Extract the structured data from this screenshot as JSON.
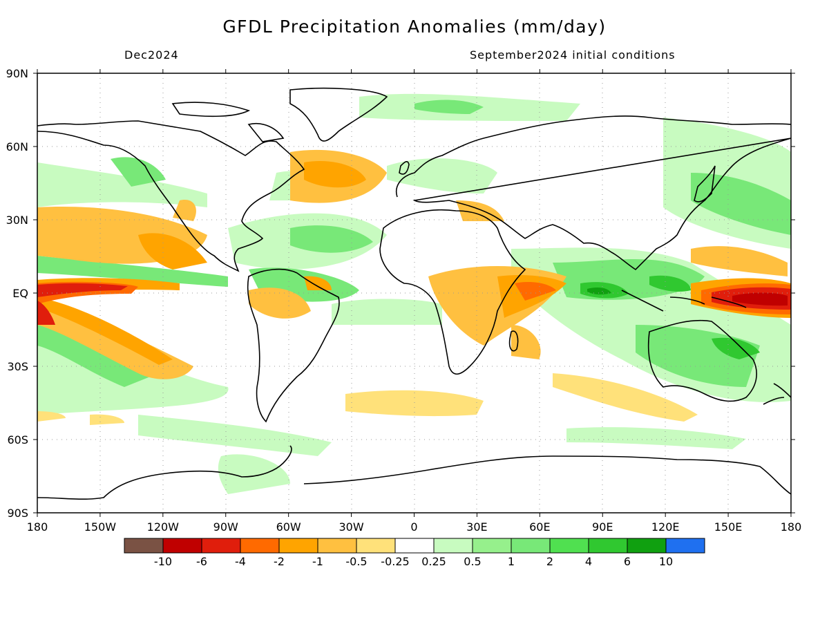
{
  "title": "GFDL Precipitation Anomalies (mm/day)",
  "subtitle_left": "Dec2024",
  "subtitle_right": "September2024 initial conditions",
  "lat_labels": [
    "90N",
    "60N",
    "30N",
    "EQ",
    "30S",
    "60S",
    "90S"
  ],
  "lon_labels": [
    "180",
    "150W",
    "120W",
    "90W",
    "60W",
    "30W",
    "0",
    "30E",
    "60E",
    "90E",
    "120E",
    "150E",
    "180"
  ],
  "colorbar": {
    "colors": [
      "#7a5244",
      "#c00000",
      "#e01e0c",
      "#ff6a00",
      "#ffa400",
      "#ffc040",
      "#ffe17a",
      "#ffffff",
      "#c8fbc0",
      "#96f08c",
      "#78e878",
      "#50e050",
      "#30c830",
      "#10a010",
      "#1f70f0"
    ],
    "labels": [
      "-10",
      "-6",
      "-4",
      "-2",
      "-1",
      "-0.5",
      "-0.25",
      "0.25",
      "0.5",
      "1",
      "2",
      "4",
      "6",
      "10"
    ]
  }
}
